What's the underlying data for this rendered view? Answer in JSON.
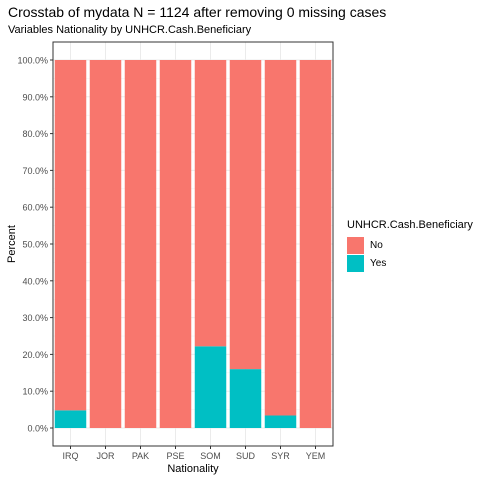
{
  "chart_data": {
    "type": "bar",
    "stacked": true,
    "title": "Crosstab of mydata N = 1124 after removing 0 missing cases",
    "subtitle": "Variables Nationality by UNHCR.Cash.Beneficiary",
    "xlabel": "Nationality",
    "ylabel": "Percent",
    "categories": [
      "IRQ",
      "JOR",
      "PAK",
      "PSE",
      "SOM",
      "SUD",
      "SYR",
      "YEM"
    ],
    "series": [
      {
        "name": "Yes",
        "color": "#00BFC4",
        "values": [
          4.8,
          0,
          0,
          0,
          22.2,
          16.0,
          3.4,
          0
        ]
      },
      {
        "name": "No",
        "color": "#F8766D",
        "values": [
          95.2,
          100,
          100,
          100,
          77.8,
          84.0,
          96.6,
          100
        ]
      }
    ],
    "ylim": [
      0,
      100
    ],
    "yticks": [
      "0.0%",
      "10.0%",
      "20.0%",
      "30.0%",
      "40.0%",
      "50.0%",
      "60.0%",
      "70.0%",
      "80.0%",
      "90.0%",
      "100.0%"
    ],
    "grid": true,
    "legend": {
      "title": "UNHCR.Cash.Beneficiary",
      "position": "right",
      "items": [
        {
          "label": "No",
          "color": "#F8766D"
        },
        {
          "label": "Yes",
          "color": "#00BFC4"
        }
      ]
    }
  }
}
